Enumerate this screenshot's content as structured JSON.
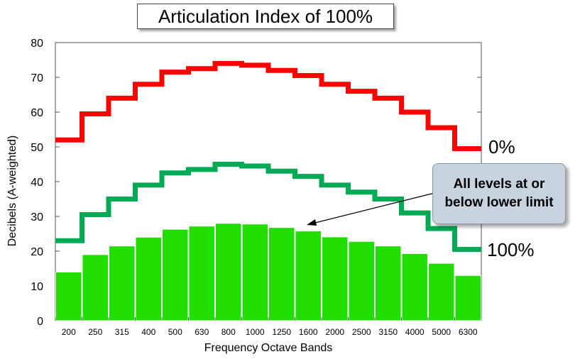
{
  "chart_data": {
    "type": "bar",
    "title": "Articulation Index of 100%",
    "xlabel": "Frequency Octave Bands",
    "ylabel": "Decibels (A-weighted)",
    "ylim": [
      0,
      80
    ],
    "yticks": [
      0,
      10,
      20,
      30,
      40,
      50,
      60,
      70,
      80
    ],
    "categories": [
      "200",
      "250",
      "315",
      "400",
      "500",
      "630",
      "800",
      "1000",
      "1250",
      "1600",
      "2000",
      "2500",
      "3150",
      "4000",
      "5000",
      "6300"
    ],
    "values": [
      14,
      19,
      21.5,
      24,
      26.3,
      27.2,
      28,
      27.8,
      26.8,
      25.8,
      24.1,
      22.8,
      21.5,
      19.3,
      16.5,
      13
    ],
    "series": [
      {
        "name": "0%",
        "values": [
          52,
          59.5,
          64,
          68,
          71.5,
          72.5,
          74,
          73.5,
          72,
          70.5,
          68,
          66,
          64,
          60,
          55.5,
          49.5
        ]
      },
      {
        "name": "100%",
        "values": [
          23,
          30.5,
          35,
          39,
          42.5,
          43.5,
          45,
          44.5,
          43,
          41.5,
          39,
          37,
          35,
          31,
          26.5,
          20.5
        ]
      }
    ],
    "grid": false,
    "colors": {
      "bars": "#22dd00",
      "upper": "#ff0000",
      "lower": "#00aa55"
    }
  },
  "callout": {
    "text": "All levels at or below lower limit"
  }
}
